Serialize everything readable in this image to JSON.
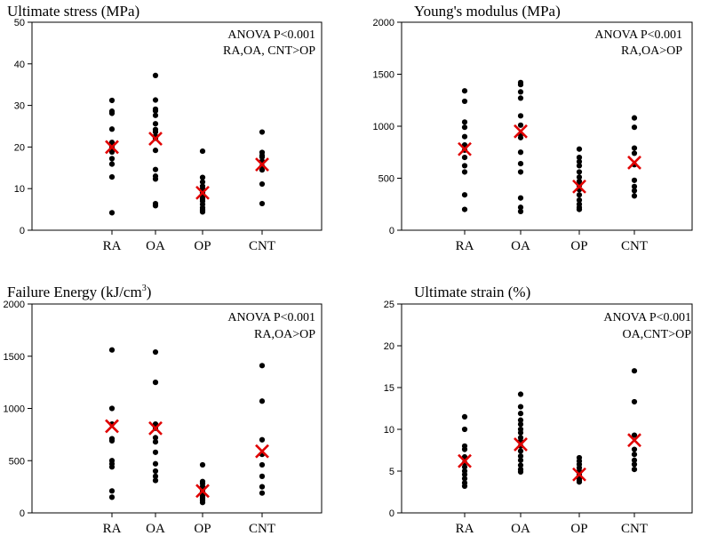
{
  "chart_data": [
    {
      "type": "scatter",
      "title": "Ultimate stress (MPa)",
      "annotation": [
        "ANOVA P<0.001",
        "RA,OA, CNT>OP"
      ],
      "categories": [
        "RA",
        "OA",
        "OP",
        "CNT"
      ],
      "yticks": [
        "0",
        "10",
        "20",
        "30",
        "40",
        "50"
      ],
      "ylim": [
        0,
        50
      ],
      "points": [
        [
          31.2,
          28.6,
          28.1,
          24.3,
          21.1,
          20.0,
          19.3,
          18.8,
          17.2,
          15.9,
          12.8,
          4.2
        ],
        [
          37.2,
          31.3,
          29.1,
          28.7,
          27.6,
          25.6,
          24.2,
          23.6,
          22.6,
          22.1,
          19.2,
          14.6,
          13.0,
          12.3,
          6.4,
          5.9
        ],
        [
          19.0,
          12.7,
          11.6,
          10.6,
          10.0,
          9.6,
          9.0,
          8.5,
          8.0,
          7.5,
          7.0,
          6.2,
          5.4,
          4.9,
          4.4
        ],
        [
          23.6,
          18.7,
          18.0,
          17.6,
          16.6,
          15.4,
          14.5,
          11.1,
          6.4
        ]
      ],
      "means": [
        20.0,
        22.0,
        9.0,
        15.8
      ],
      "mean_marker": "red-x",
      "mean_color": "#e00000"
    },
    {
      "type": "scatter",
      "title": "Young's modulus (MPa)",
      "annotation": [
        "ANOVA P<0.001",
        "RA,OA>OP"
      ],
      "categories": [
        "RA",
        "OA",
        "OP",
        "CNT"
      ],
      "yticks": [
        "0",
        "500",
        "1000",
        "1500",
        "2000"
      ],
      "ylim": [
        0,
        2000
      ],
      "points": [
        [
          1340,
          1240,
          1040,
          990,
          900,
          820,
          770,
          700,
          620,
          560,
          340,
          200
        ],
        [
          1420,
          1400,
          1330,
          1270,
          1100,
          1010,
          920,
          890,
          750,
          640,
          560,
          310,
          220,
          180
        ],
        [
          780,
          700,
          660,
          620,
          560,
          510,
          470,
          430,
          390,
          340,
          290,
          250,
          220,
          200
        ],
        [
          1080,
          990,
          790,
          740,
          630,
          480,
          420,
          380,
          330
        ]
      ],
      "means": [
        780,
        950,
        420,
        650
      ],
      "mean_marker": "red-x",
      "mean_color": "#e00000"
    },
    {
      "type": "scatter",
      "title": "Failure Energy (kJ/cm",
      "title_sup": "3",
      "title_end": ")",
      "annotation": [
        "ANOVA P<0.001",
        "RA,OA>OP"
      ],
      "categories": [
        "RA",
        "OA",
        "OP",
        "CNT"
      ],
      "yticks": [
        "0",
        "500",
        "1000",
        "1500",
        "2000"
      ],
      "ylim": [
        0,
        2000
      ],
      "points": [
        [
          1560,
          1000,
          850,
          710,
          690,
          500,
          470,
          440,
          210,
          150
        ],
        [
          1540,
          1250,
          850,
          810,
          720,
          680,
          580,
          470,
          400,
          350,
          310
        ],
        [
          460,
          300,
          280,
          250,
          210,
          180,
          160,
          140,
          120,
          100
        ],
        [
          1410,
          1070,
          700,
          560,
          460,
          350,
          250,
          190
        ]
      ],
      "means": [
        830,
        810,
        210,
        590
      ],
      "mean_marker": "red-x",
      "mean_color": "#e00000"
    },
    {
      "type": "scatter",
      "title": "Ultimate strain (%)",
      "annotation": [
        "ANOVA P<0.001",
        "OA,CNT>OP"
      ],
      "categories": [
        "RA",
        "OA",
        "OP",
        "CNT"
      ],
      "yticks": [
        "0",
        "5",
        "10",
        "15",
        "20",
        "25"
      ],
      "ylim": [
        0,
        25
      ],
      "points": [
        [
          11.5,
          10.0,
          8.0,
          7.6,
          6.7,
          6.0,
          5.5,
          5.0,
          4.6,
          4.1,
          3.6,
          3.2
        ],
        [
          14.2,
          12.7,
          11.9,
          11.1,
          10.6,
          10.0,
          9.6,
          9.0,
          8.6,
          8.0,
          7.4,
          6.8,
          6.3,
          5.7,
          5.2,
          4.9
        ],
        [
          6.6,
          6.2,
          5.8,
          5.4,
          5.0,
          4.6,
          4.4,
          4.1,
          3.9,
          3.7
        ],
        [
          17.0,
          13.3,
          9.3,
          7.6,
          7.0,
          6.3,
          5.8,
          5.2
        ]
      ],
      "means": [
        6.2,
        8.2,
        4.6,
        8.7
      ],
      "mean_marker": "red-x",
      "mean_color": "#e00000"
    }
  ]
}
